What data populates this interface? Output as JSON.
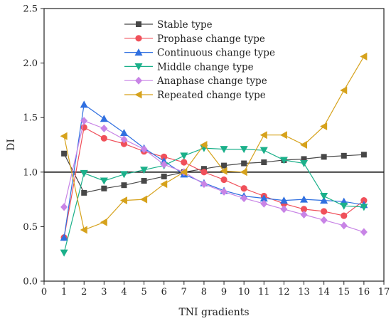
{
  "chart_data": {
    "type": "line",
    "xlabel": "TNI gradients",
    "ylabel": "DI",
    "xlim": [
      0,
      17
    ],
    "ylim": [
      0.0,
      2.5
    ],
    "xticks": [
      0,
      1,
      2,
      3,
      4,
      5,
      6,
      7,
      8,
      9,
      10,
      11,
      12,
      13,
      14,
      15,
      16,
      17
    ],
    "yticks": [
      "0.0",
      "0.5",
      "1.0",
      "1.5",
      "2.0",
      "2.5"
    ],
    "reference_line_y": 1.0,
    "legend_position": "top-center",
    "grid": false,
    "x": [
      1,
      2,
      3,
      4,
      5,
      6,
      7,
      8,
      9,
      10,
      11,
      12,
      13,
      14,
      15,
      16
    ],
    "series": [
      {
        "name": "Stable type",
        "color": "#474747",
        "marker": "square",
        "values": [
          1.17,
          0.81,
          0.85,
          0.88,
          0.92,
          0.96,
          1.0,
          1.03,
          1.06,
          1.08,
          1.09,
          1.11,
          1.12,
          1.14,
          1.15,
          1.16
        ]
      },
      {
        "name": "Prophase change type",
        "color": "#f0505a",
        "marker": "circle",
        "values": [
          0.4,
          1.41,
          1.31,
          1.26,
          1.19,
          1.14,
          1.09,
          1.0,
          0.93,
          0.85,
          0.78,
          0.71,
          0.66,
          0.64,
          0.6,
          0.74
        ]
      },
      {
        "name": "Continuous change type",
        "color": "#2f6fe0",
        "marker": "triangle-up",
        "values": [
          0.4,
          1.62,
          1.49,
          1.36,
          1.22,
          1.1,
          0.98,
          0.9,
          0.83,
          0.78,
          0.76,
          0.74,
          0.75,
          0.74,
          0.73,
          0.7
        ]
      },
      {
        "name": "Middle change type",
        "color": "#1bb08a",
        "marker": "triangle-down",
        "values": [
          0.26,
          0.99,
          0.92,
          0.98,
          1.02,
          1.06,
          1.15,
          1.22,
          1.21,
          1.21,
          1.2,
          1.11,
          1.08,
          0.78,
          0.69,
          0.68
        ]
      },
      {
        "name": "Anaphase change type",
        "color": "#c884e6",
        "marker": "diamond",
        "values": [
          0.68,
          1.47,
          1.4,
          1.3,
          1.21,
          1.07,
          1.0,
          0.89,
          0.82,
          0.76,
          0.71,
          0.66,
          0.61,
          0.56,
          0.51,
          0.45
        ]
      },
      {
        "name": "Repeated change type",
        "color": "#d6a21c",
        "marker": "triangle-left",
        "values": [
          1.33,
          0.47,
          0.54,
          0.74,
          0.75,
          0.89,
          1.0,
          1.25,
          1.01,
          1.0,
          1.34,
          1.34,
          1.25,
          1.42,
          1.75,
          2.06
        ]
      }
    ]
  }
}
